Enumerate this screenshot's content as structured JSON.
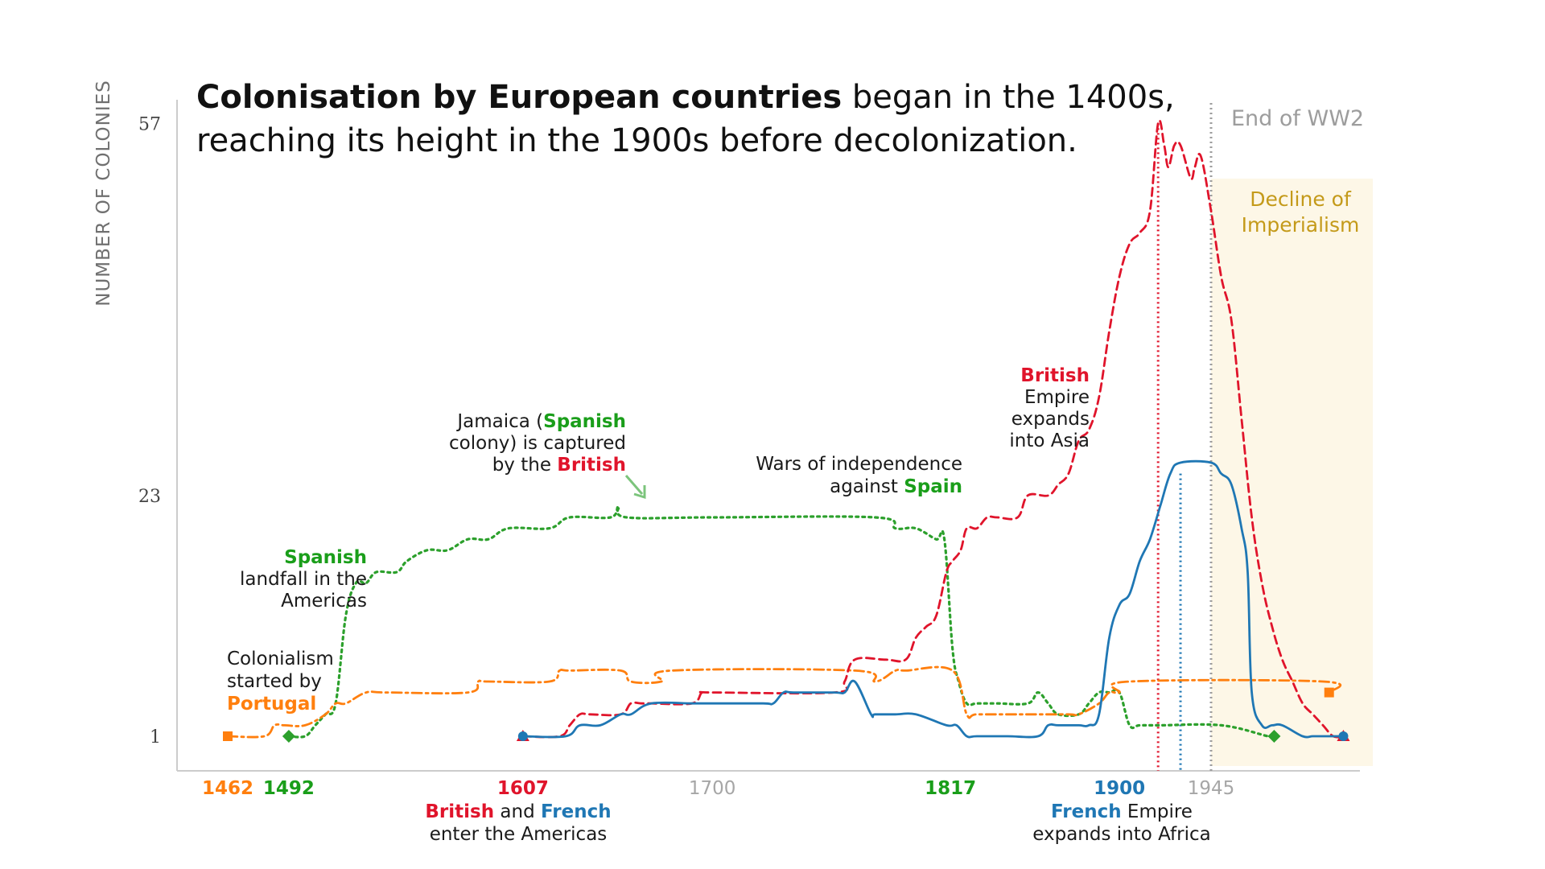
{
  "title": {
    "bold": "Colonisation by European countries",
    "rest1": " began in the 1400s,",
    "line2": "reaching its height in the 1900s before decolonization."
  },
  "y_axis_label": "NUMBER OF COLONIES",
  "annotations": {
    "portugal": {
      "l1": "Colonialism",
      "l2": "started by",
      "l3": "Portugal"
    },
    "spanish_landfall": {
      "l1": "Spanish",
      "l2": "landfall in the",
      "l3": "Americas"
    },
    "jamaica": {
      "l1a": "Jamaica (",
      "l1b": "Spanish",
      "l2": "colony) is captured",
      "l3a": "by the ",
      "l3b": "British"
    },
    "independence": {
      "l1": "Wars of independence",
      "l2a": "against ",
      "l2b": "Spain"
    },
    "british_asia": {
      "l1": "British",
      "l2": "Empire",
      "l3": "expands",
      "l4": "into Asia"
    },
    "end_ww2": "End of WW2",
    "decline": {
      "l1": "Decline of",
      "l2": "Imperialism"
    },
    "british_french": {
      "l1a": "British",
      "l1b": " and ",
      "l1c": "French",
      "l2": "enter the Americas"
    },
    "french_africa": {
      "l1a": "French",
      "l1b": " Empire",
      "l2": "expands into Africa"
    }
  },
  "colors": {
    "british": "#e0142b",
    "french": "#1f77b4",
    "spanish": "#2ca02c",
    "portuguese": "#ff7f0e",
    "ww2_line": "#9d9d9d",
    "decline_band": "#fdf7e7",
    "axis": "#cccccc"
  },
  "chart_data": {
    "type": "line",
    "title": "Colonisation by European countries began in the 1400s, reaching its height in the 1900s before decolonization.",
    "xlabel": "",
    "ylabel": "NUMBER OF COLONIES",
    "xlim": [
      1440,
      2020
    ],
    "ylim": [
      -1,
      59
    ],
    "grid": false,
    "x_ticks": [
      {
        "value": 1462,
        "label": "1462",
        "color": "#ff7f0e"
      },
      {
        "value": 1492,
        "label": "1492",
        "color": "#1a9e1a"
      },
      {
        "value": 1607,
        "label": "1607",
        "color": "#e0142b"
      },
      {
        "value": 1700,
        "label": "1700",
        "color": "#a6a6a6"
      },
      {
        "value": 1817,
        "label": "1817",
        "color": "#1a9e1a"
      },
      {
        "value": 1900,
        "label": "1900",
        "color": "#1f77b4"
      },
      {
        "value": 1945,
        "label": "1945",
        "color": "#a6a6a6"
      }
    ],
    "y_ticks": [
      {
        "value": 1,
        "label": "1"
      },
      {
        "value": 23,
        "label": "23"
      },
      {
        "value": 57,
        "label": "57"
      }
    ],
    "decline_band": [
      1945,
      2013
    ],
    "vlines": [
      {
        "x": 1919,
        "color": "#e0142b",
        "style": "dotted",
        "y_top": 57
      },
      {
        "x": 1930,
        "color": "#1f77b4",
        "style": "dotted",
        "y_top": 25
      },
      {
        "x": 1945,
        "color": "#9d9d9d",
        "style": "dotted",
        "y_top": 60
      }
    ],
    "series": [
      {
        "name": "Spanish",
        "color": "#2ca02c",
        "dash": "dotted",
        "marker": "diamond",
        "x": [
          1492,
          1500,
          1505,
          1510,
          1515,
          1520,
          1525,
          1530,
          1535,
          1545,
          1550,
          1560,
          1570,
          1580,
          1590,
          1600,
          1620,
          1630,
          1650,
          1654,
          1658,
          1700,
          1780,
          1790,
          1800,
          1810,
          1814,
          1818,
          1821,
          1825,
          1830,
          1840,
          1855,
          1860,
          1865,
          1870,
          1880,
          1885,
          1890,
          1895,
          1900,
          1905,
          1910,
          1920,
          1950,
          1973,
          1976
        ],
        "y": [
          1,
          1,
          2,
          3,
          4,
          12,
          15,
          15,
          16,
          16,
          17,
          18,
          18,
          19,
          19,
          20,
          20,
          21,
          21,
          22,
          21,
          21,
          21,
          20,
          20,
          19,
          19,
          9,
          6,
          4,
          4,
          4,
          4,
          5,
          4,
          3,
          3,
          4,
          5,
          5,
          5,
          2,
          2,
          2,
          2,
          1,
          1
        ]
      },
      {
        "name": "Portuguese",
        "color": "#ff7f0e",
        "dash": "dashdot",
        "marker": "square",
        "x": [
          1462,
          1480,
          1485,
          1490,
          1500,
          1510,
          1515,
          1520,
          1530,
          1540,
          1580,
          1585,
          1590,
          1620,
          1625,
          1630,
          1655,
          1660,
          1675,
          1680,
          1770,
          1780,
          1790,
          1795,
          1818,
          1825,
          1830,
          1850,
          1855,
          1875,
          1880,
          1890,
          1895,
          1900,
          1905,
          2000,
          2003
        ],
        "y": [
          1,
          1,
          2,
          2,
          2,
          3,
          4,
          4,
          5,
          5,
          5,
          6,
          6,
          6,
          7,
          7,
          7,
          6,
          6,
          7,
          7,
          6,
          7,
          7,
          7,
          3,
          3,
          3,
          3,
          3,
          3,
          4,
          5,
          5,
          6,
          6,
          5
        ]
      },
      {
        "name": "British",
        "color": "#e0142b",
        "dash": "dashed",
        "marker": "triangle",
        "x": [
          1607,
          1625,
          1630,
          1635,
          1640,
          1655,
          1660,
          1665,
          1670,
          1690,
          1695,
          1700,
          1760,
          1765,
          1770,
          1785,
          1795,
          1800,
          1805,
          1810,
          1815,
          1818,
          1822,
          1825,
          1830,
          1835,
          1840,
          1850,
          1855,
          1865,
          1870,
          1875,
          1880,
          1885,
          1890,
          1895,
          1900,
          1905,
          1910,
          1915,
          1919,
          1922,
          1924,
          1927,
          1930,
          1935,
          1937,
          1940,
          1945,
          1950,
          1955,
          1960,
          1965,
          1970,
          1975,
          1980,
          1985,
          1990,
          1995,
          2000,
          2005,
          2010
        ],
        "y": [
          1,
          1,
          2,
          3,
          3,
          3,
          4,
          4,
          4,
          4,
          5,
          5,
          5,
          6,
          8,
          8,
          8,
          10,
          11,
          12,
          16,
          17,
          18,
          20,
          20,
          21,
          21,
          21,
          23,
          23,
          24,
          25,
          28,
          29,
          32,
          38,
          43,
          46,
          47,
          49,
          57,
          55,
          53,
          55,
          55,
          52,
          53,
          54,
          49,
          43,
          39,
          30,
          21,
          15,
          11,
          8,
          6,
          4,
          3,
          2,
          1,
          1
        ]
      },
      {
        "name": "French",
        "color": "#1f77b4",
        "dash": "solid",
        "marker": "circle",
        "x": [
          1607,
          1628,
          1635,
          1645,
          1655,
          1660,
          1670,
          1690,
          1700,
          1725,
          1730,
          1735,
          1740,
          1760,
          1765,
          1770,
          1778,
          1780,
          1790,
          1800,
          1815,
          1820,
          1825,
          1830,
          1845,
          1860,
          1865,
          1870,
          1880,
          1885,
          1890,
          1895,
          1900,
          1905,
          1910,
          1915,
          1920,
          1925,
          1930,
          1945,
          1950,
          1955,
          1960,
          1963,
          1965,
          1970,
          1975,
          1980,
          1990,
          1995,
          2001,
          2005,
          2010
        ],
        "y": [
          1,
          1,
          2,
          2,
          3,
          3,
          4,
          4,
          4,
          4,
          4,
          5,
          5,
          5,
          5,
          6,
          3,
          3,
          3,
          3,
          2,
          2,
          1,
          1,
          1,
          1,
          2,
          2,
          2,
          2,
          3,
          10,
          13,
          14,
          17,
          19,
          22,
          25,
          26,
          26,
          25,
          24,
          20,
          16,
          5,
          2,
          2,
          2,
          1,
          1,
          1,
          1,
          1
        ]
      }
    ]
  }
}
